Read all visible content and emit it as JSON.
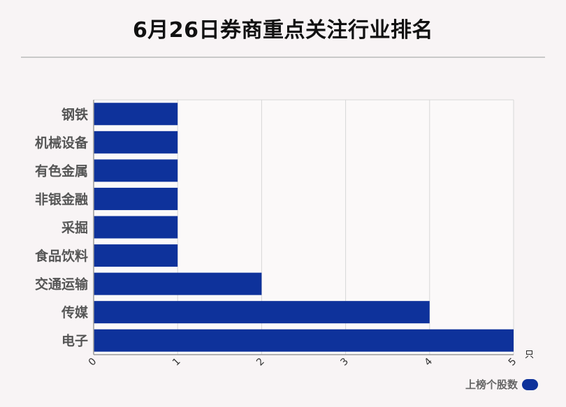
{
  "title": "6月26日券商重点关注行业排名",
  "legend": {
    "label": "上榜个股数"
  },
  "colors": {
    "bar": "#0e329b",
    "grid": "#d7d7d7",
    "axis": "#9a9a9a"
  },
  "chart_data": {
    "type": "bar",
    "orientation": "horizontal",
    "categories": [
      "钢铁",
      "机械设备",
      "有色金属",
      "非银金融",
      "采掘",
      "食品饮料",
      "交通运输",
      "传媒",
      "电子"
    ],
    "values": [
      1,
      1,
      1,
      1,
      1,
      1,
      2,
      4,
      5
    ],
    "series": [
      {
        "name": "上榜个股数",
        "values": [
          1,
          1,
          1,
          1,
          1,
          1,
          2,
          4,
          5
        ]
      }
    ],
    "xlim": [
      0,
      5
    ],
    "xticks": [
      "0",
      "1",
      "2",
      "3",
      "4",
      "5"
    ],
    "x_unit": "只",
    "grid": true,
    "legend_position": "bottom-right"
  }
}
